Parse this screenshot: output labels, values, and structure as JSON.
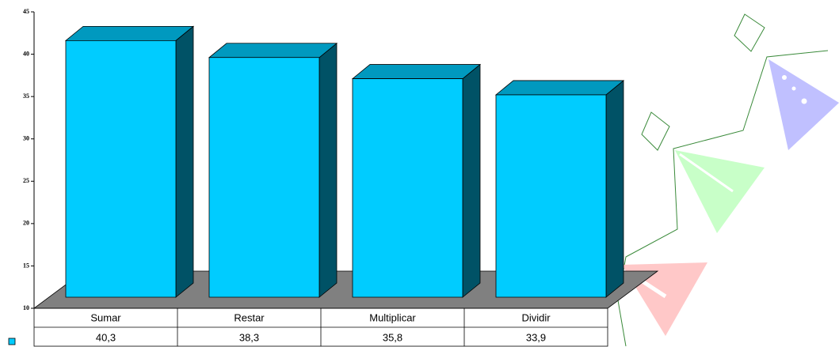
{
  "chart_data": {
    "type": "bar3d",
    "categories": [
      "Sumar",
      "Restar",
      "Multiplicar",
      "Dividir"
    ],
    "values": [
      40.3,
      38.3,
      35.8,
      33.9
    ],
    "value_labels": [
      "40,3",
      "38,3",
      "35,8",
      "33,9"
    ],
    "color": "#00ccff",
    "ylim": [
      10,
      45
    ],
    "yticks": [
      10,
      15,
      20,
      25,
      30,
      35,
      40,
      45
    ]
  }
}
